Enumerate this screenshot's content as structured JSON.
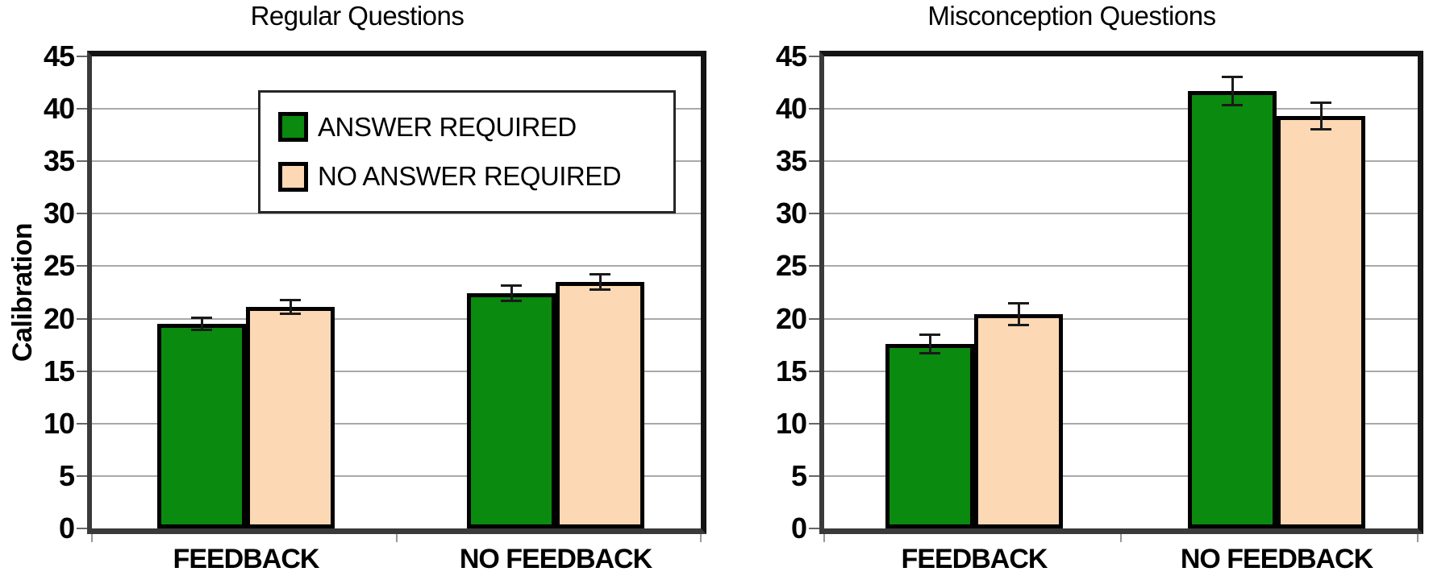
{
  "figure": {
    "ylabel": "Calibration",
    "background": "#ffffff"
  },
  "legend": {
    "entries": [
      {
        "label": "ANSWER REQUIRED",
        "color": "#0a8a0e"
      },
      {
        "label": "NO ANSWER REQUIRED",
        "color": "#fcd8b4"
      }
    ]
  },
  "chart_data": [
    {
      "type": "bar",
      "title": "Regular Questions",
      "ylabel": "Calibration",
      "xlabel": "",
      "categories": [
        "FEEDBACK",
        "NO FEEDBACK"
      ],
      "series": [
        {
          "name": "ANSWER REQUIRED",
          "color": "#0a8a0e",
          "values": [
            19.5,
            22.4
          ],
          "errors": [
            0.6,
            0.8
          ]
        },
        {
          "name": "NO ANSWER REQUIRED",
          "color": "#fcd8b4",
          "values": [
            21.1,
            23.5
          ],
          "errors": [
            0.7,
            0.8
          ]
        }
      ],
      "ylim": [
        0,
        45
      ],
      "ytick_step": 5,
      "grid": true,
      "legend_visible": true,
      "legend_position": "upper-center"
    },
    {
      "type": "bar",
      "title": "Misconception Questions",
      "ylabel": "",
      "xlabel": "",
      "categories": [
        "FEEDBACK",
        "NO FEEDBACK"
      ],
      "series": [
        {
          "name": "ANSWER REQUIRED",
          "color": "#0a8a0e",
          "values": [
            17.6,
            41.7
          ],
          "errors": [
            0.9,
            1.4
          ]
        },
        {
          "name": "NO ANSWER REQUIRED",
          "color": "#fcd8b4",
          "values": [
            20.4,
            39.3
          ],
          "errors": [
            1.1,
            1.3
          ]
        }
      ],
      "ylim": [
        0,
        45
      ],
      "ytick_step": 5,
      "grid": true,
      "legend_visible": false,
      "legend_position": "none"
    }
  ],
  "styles": {
    "bar_border": "#000000",
    "gridline": "#a9a9a9",
    "frame_black": "#141414",
    "frame_dark": "#3a3a3a",
    "error_bar": "#1a1a1a",
    "y_tick": "#666666",
    "x_tick": "#999999",
    "text": "#000000"
  }
}
